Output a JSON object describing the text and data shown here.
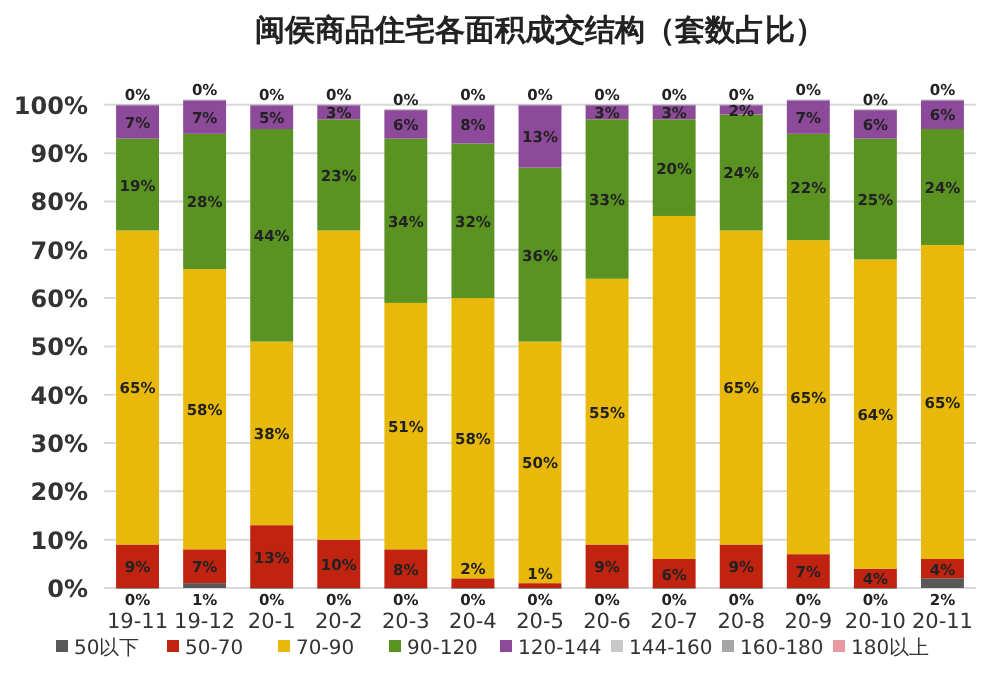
{
  "chart_data": {
    "type": "bar",
    "stacked": true,
    "title": "闽侯商品住宅各面积成交结构（套数占比）",
    "categories": [
      "19-11",
      "19-12",
      "20-1",
      "20-2",
      "20-3",
      "20-4",
      "20-5",
      "20-6",
      "20-7",
      "20-8",
      "20-9",
      "20-10",
      "20-11"
    ],
    "ylim": [
      0,
      101
    ],
    "yticks": [
      {
        "value": 0,
        "label": "0%"
      },
      {
        "value": 10,
        "label": "10%"
      },
      {
        "value": 20,
        "label": "20%"
      },
      {
        "value": 30,
        "label": "30%"
      },
      {
        "value": 40,
        "label": "40%"
      },
      {
        "value": 50,
        "label": "50%"
      },
      {
        "value": 60,
        "label": "60%"
      },
      {
        "value": 70,
        "label": "70%"
      },
      {
        "value": 80,
        "label": "80%"
      },
      {
        "value": 90,
        "label": "90%"
      },
      {
        "value": 100,
        "label": "100%"
      }
    ],
    "grid": "y",
    "legend": "bottom",
    "series": [
      {
        "name": "50以下",
        "color": "#595959",
        "values": [
          0,
          1,
          0,
          0,
          0,
          0,
          0,
          0,
          0,
          0,
          0,
          0,
          2
        ],
        "value_labels": [
          "0%",
          "1%",
          "0%",
          "0%",
          "0%",
          "0%",
          "0%",
          "0%",
          "0%",
          "0%",
          "0%",
          "0%",
          "2%"
        ]
      },
      {
        "name": "50-70",
        "color": "#c0230f",
        "values": [
          9,
          7,
          13,
          10,
          8,
          2,
          1,
          9,
          6,
          9,
          7,
          4,
          4
        ],
        "value_labels": [
          "9%",
          "7%",
          "13%",
          "10%",
          "8%",
          "2%",
          "1%",
          "9%",
          "6%",
          "9%",
          "7%",
          "4%",
          "4%"
        ]
      },
      {
        "name": "70-90",
        "color": "#e8b90a",
        "values": [
          65,
          58,
          38,
          64,
          51,
          58,
          50,
          55,
          71,
          65,
          65,
          64,
          65
        ],
        "value_labels": [
          "65%",
          "58%",
          "38%",
          null,
          "51%",
          "58%",
          "50%",
          "55%",
          null,
          "65%",
          "65%",
          "64%",
          "65%"
        ]
      },
      {
        "name": "90-120",
        "color": "#5a9322",
        "values": [
          19,
          28,
          44,
          23,
          34,
          32,
          36,
          33,
          20,
          24,
          22,
          25,
          24
        ],
        "value_labels": [
          "19%",
          "28%",
          "44%",
          "23%",
          "34%",
          "32%",
          "36%",
          "33%",
          "20%",
          "24%",
          "22%",
          "25%",
          "24%"
        ]
      },
      {
        "name": "120-144",
        "color": "#8e4a9a",
        "values": [
          7,
          7,
          5,
          3,
          6,
          8,
          13,
          3,
          3,
          2,
          7,
          6,
          6
        ],
        "value_labels": [
          "7%",
          "7%",
          "5%",
          "3%",
          "6%",
          "8%",
          "13%",
          "3%",
          "3%",
          "2%",
          "7%",
          "6%",
          "6%"
        ]
      },
      {
        "name": "144-160",
        "color": "#c8c8c8",
        "values": [
          0,
          0,
          0,
          0,
          0,
          0,
          0,
          0,
          0,
          0,
          0,
          0,
          0
        ],
        "value_labels": [
          "0%",
          "0%",
          "0%",
          "0%",
          "0%",
          "0%",
          "0%",
          "0%",
          "0%",
          "0%",
          "0%",
          "0%",
          "0%"
        ]
      },
      {
        "name": "160-180",
        "color": "#a6a6a6",
        "values": [
          0,
          0,
          0,
          0,
          0,
          0,
          0,
          0,
          0,
          0,
          0,
          0,
          0
        ]
      },
      {
        "name": "180以上",
        "color": "#e89aa0",
        "values": [
          0,
          0,
          0,
          0,
          0,
          0,
          0,
          0,
          0,
          0,
          0,
          0,
          0
        ]
      }
    ]
  }
}
